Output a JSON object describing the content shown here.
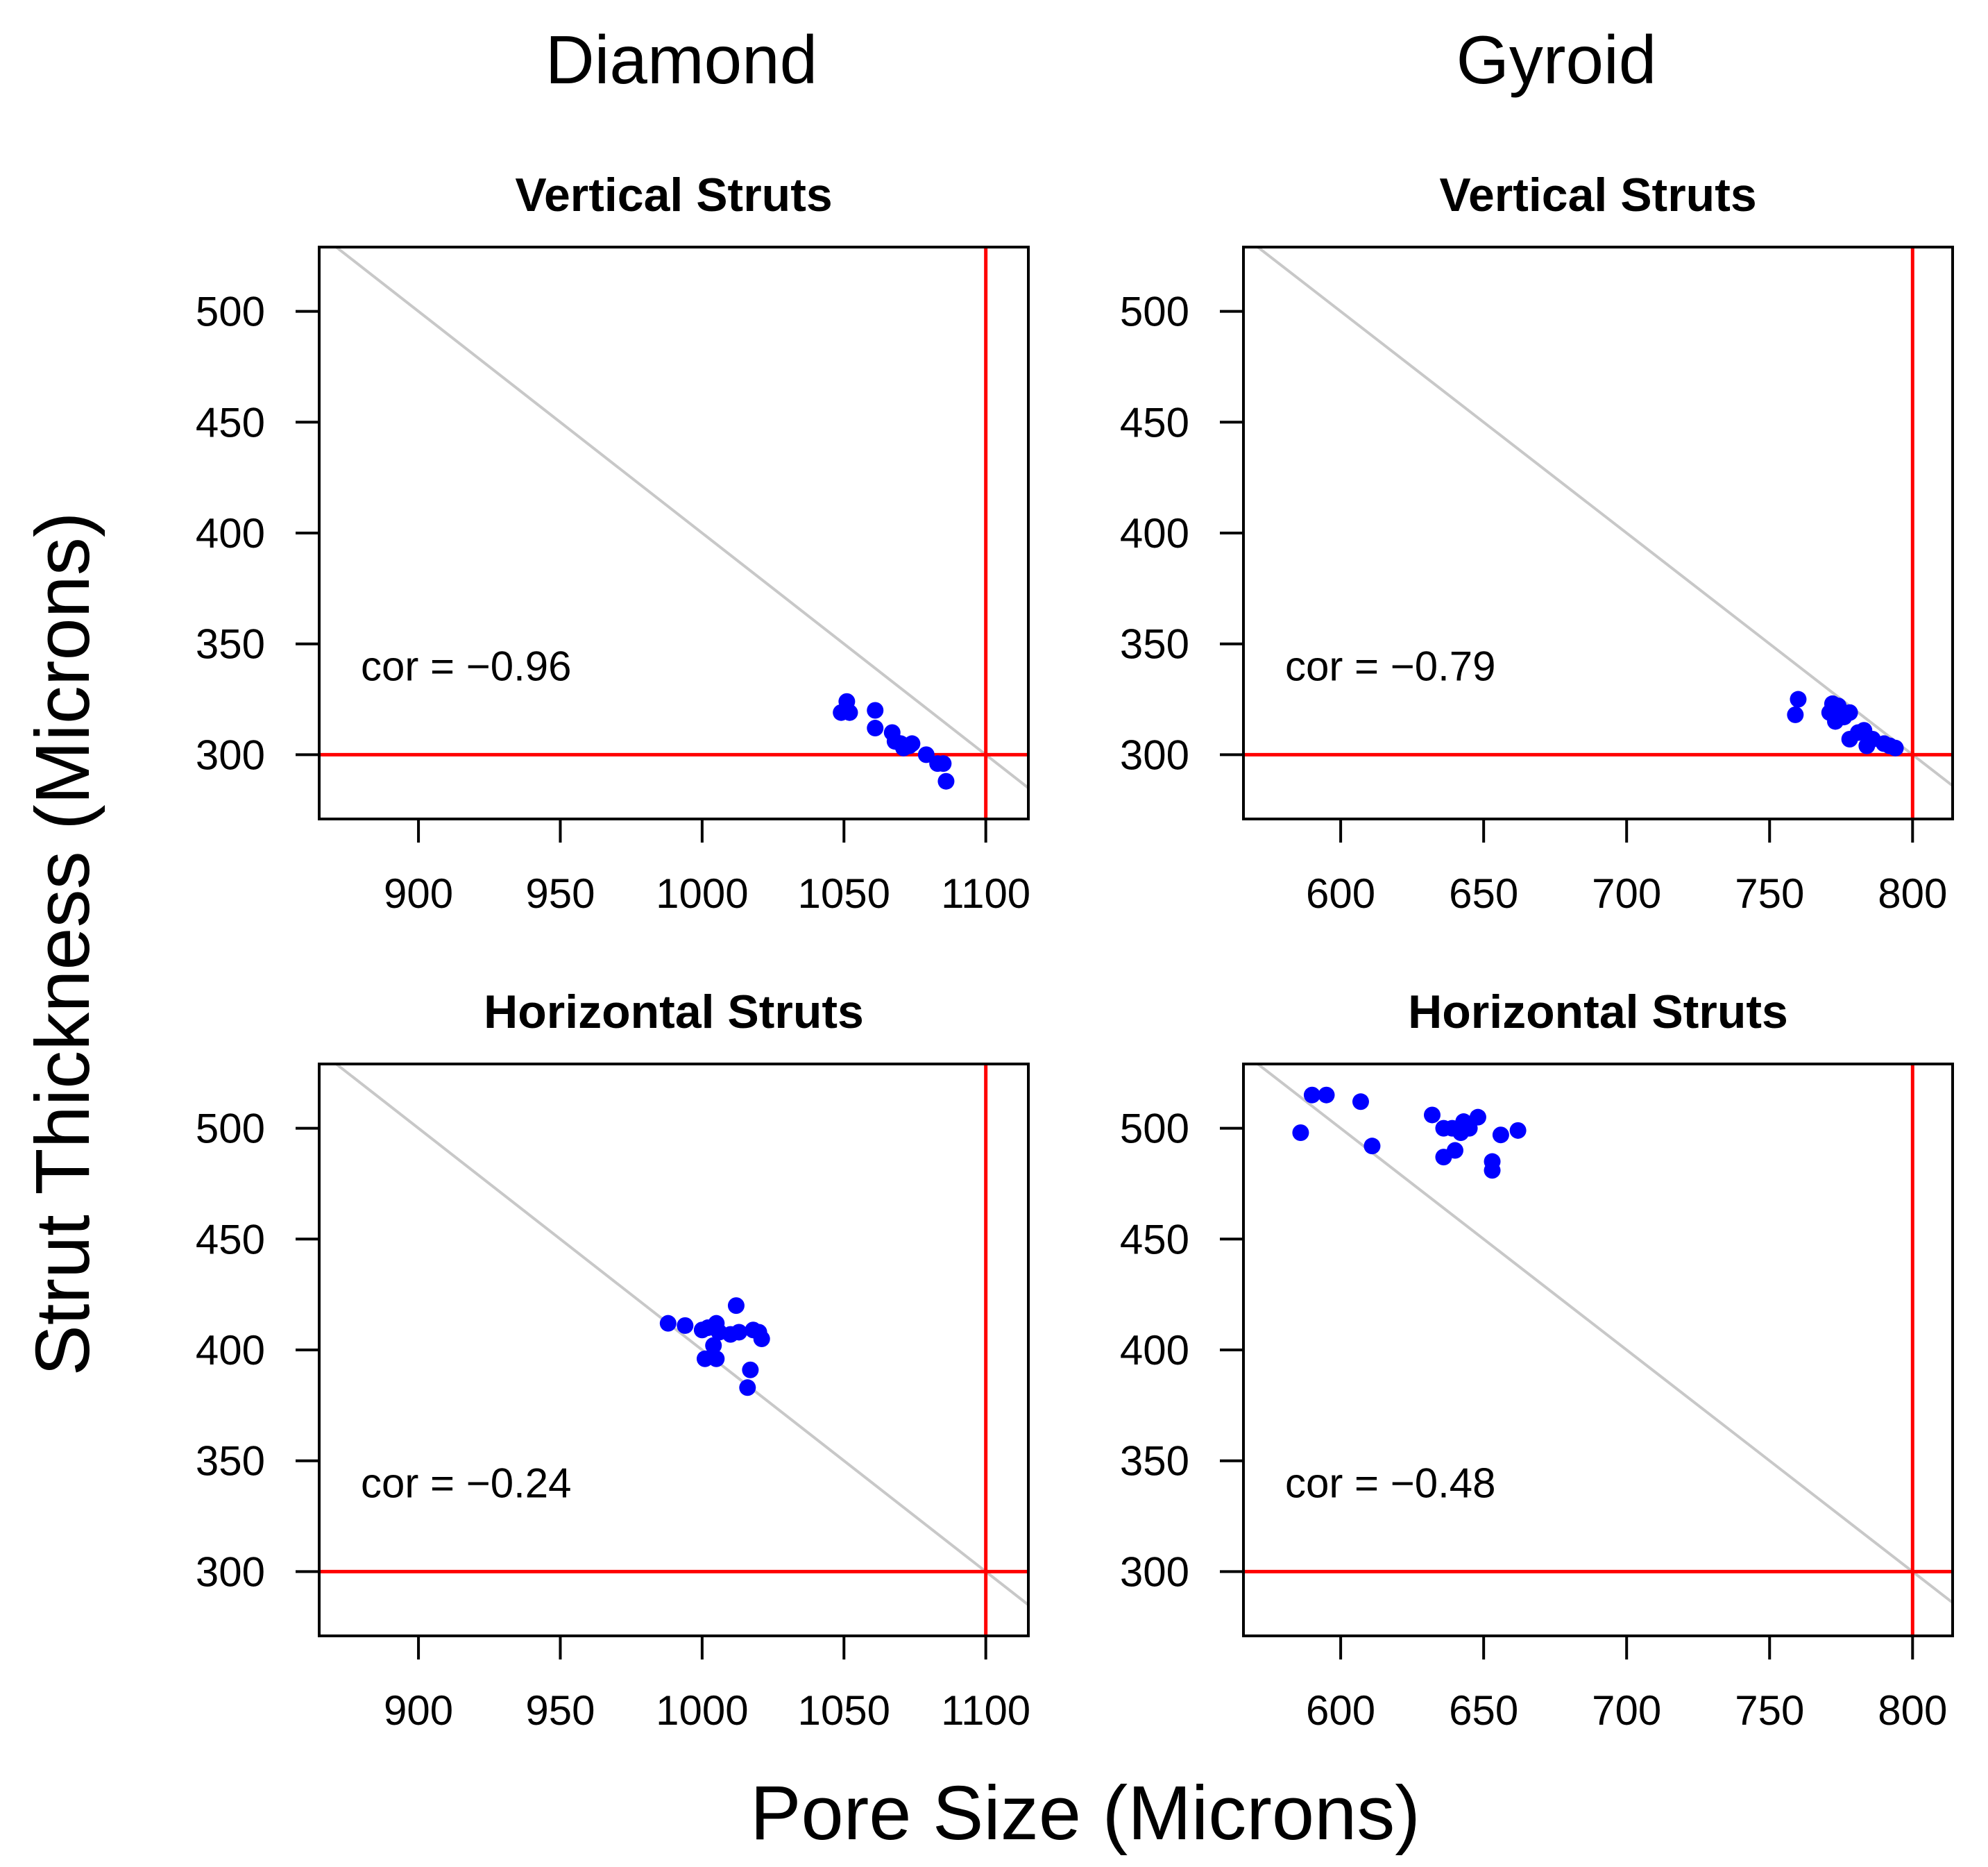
{
  "column_titles": [
    "Diamond",
    "Gyroid"
  ],
  "xlabel": "Pore Size (Microns)",
  "ylabel": "Strut Thickness (Microns)",
  "style": {
    "point_color": "#0000ff",
    "reference_color": "#ff0000",
    "diagonal_color": "#c8c8c8",
    "frame_color": "#000000"
  },
  "chart_data": [
    {
      "type": "scatter",
      "structure": "Diamond",
      "title": "Vertical Struts",
      "cor_label": "cor = −0.96",
      "xlim": [
        865,
        1115
      ],
      "ylim": [
        271,
        529
      ],
      "xticks": [
        900,
        950,
        1000,
        1050,
        1100
      ],
      "yticks": [
        300,
        350,
        400,
        450,
        500
      ],
      "ref_x": 1100,
      "ref_y": 300,
      "diagonal": {
        "sum": 1400
      },
      "points": [
        [
          1049,
          319
        ],
        [
          1051,
          324
        ],
        [
          1052,
          319
        ],
        [
          1061,
          320
        ],
        [
          1061,
          312
        ],
        [
          1067,
          310
        ],
        [
          1068,
          306
        ],
        [
          1070,
          305
        ],
        [
          1071,
          303
        ],
        [
          1073,
          304
        ],
        [
          1074,
          305
        ],
        [
          1079,
          300
        ],
        [
          1083,
          296
        ],
        [
          1085,
          296
        ],
        [
          1086,
          288
        ]
      ]
    },
    {
      "type": "scatter",
      "structure": "Gyroid",
      "title": "Vertical Struts",
      "cor_label": "cor = −0.79",
      "xlim": [
        566,
        814
      ],
      "ylim": [
        271,
        529
      ],
      "xticks": [
        600,
        650,
        700,
        750,
        800
      ],
      "yticks": [
        300,
        350,
        400,
        450,
        500
      ],
      "ref_x": 800,
      "ref_y": 300,
      "diagonal": {
        "sum": 1100
      },
      "points": [
        [
          759,
          318
        ],
        [
          760,
          325
        ],
        [
          771,
          319
        ],
        [
          772,
          323
        ],
        [
          773,
          315
        ],
        [
          774,
          322
        ],
        [
          776,
          317
        ],
        [
          778,
          319
        ],
        [
          778,
          307
        ],
        [
          781,
          310
        ],
        [
          783,
          311
        ],
        [
          784,
          304
        ],
        [
          786,
          307
        ],
        [
          790,
          305
        ],
        [
          792,
          304
        ],
        [
          794,
          303
        ]
      ]
    },
    {
      "type": "scatter",
      "structure": "Diamond",
      "title": "Horizontal Struts",
      "cor_label": "cor = −0.24",
      "xlim": [
        865,
        1115
      ],
      "ylim": [
        271,
        529
      ],
      "xticks": [
        900,
        950,
        1000,
        1050,
        1100
      ],
      "yticks": [
        300,
        350,
        400,
        450,
        500
      ],
      "ref_x": 1100,
      "ref_y": 300,
      "diagonal": {
        "sum": 1400
      },
      "points": [
        [
          988,
          412
        ],
        [
          994,
          411
        ],
        [
          1000,
          409
        ],
        [
          1001,
          396
        ],
        [
          1002,
          410
        ],
        [
          1004,
          402
        ],
        [
          1005,
          412
        ],
        [
          1005,
          396
        ],
        [
          1006,
          408
        ],
        [
          1010,
          407
        ],
        [
          1012,
          420
        ],
        [
          1013,
          408
        ],
        [
          1016,
          383
        ],
        [
          1017,
          391
        ],
        [
          1018,
          409
        ],
        [
          1020,
          408
        ],
        [
          1021,
          405
        ]
      ]
    },
    {
      "type": "scatter",
      "structure": "Gyroid",
      "title": "Horizontal Struts",
      "cor_label": "cor = −0.48",
      "xlim": [
        566,
        814
      ],
      "ylim": [
        271,
        529
      ],
      "xticks": [
        600,
        650,
        700,
        750,
        800
      ],
      "yticks": [
        300,
        350,
        400,
        450,
        500
      ],
      "ref_x": 800,
      "ref_y": 300,
      "diagonal": {
        "sum": 1100
      },
      "points": [
        [
          586,
          498
        ],
        [
          590,
          515
        ],
        [
          595,
          515
        ],
        [
          607,
          512
        ],
        [
          611,
          492
        ],
        [
          632,
          506
        ],
        [
          636,
          487
        ],
        [
          636,
          500
        ],
        [
          639,
          500
        ],
        [
          640,
          490
        ],
        [
          642,
          498
        ],
        [
          643,
          503
        ],
        [
          645,
          500
        ],
        [
          648,
          505
        ],
        [
          653,
          485
        ],
        [
          653,
          481
        ],
        [
          656,
          497
        ],
        [
          662,
          499
        ]
      ]
    }
  ]
}
